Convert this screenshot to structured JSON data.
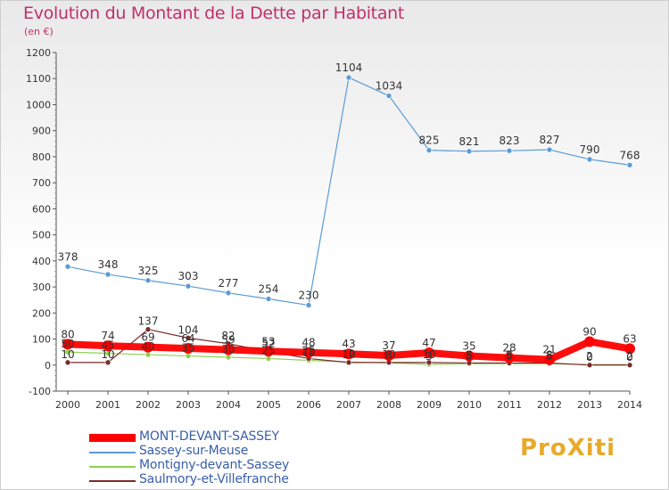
{
  "title": "Evolution du Montant de la Dette par Habitant",
  "unit_label": "(en €)",
  "logo_text": "ProXiti",
  "chart_data": {
    "type": "line",
    "x": [
      2000,
      2001,
      2002,
      2003,
      2004,
      2005,
      2006,
      2007,
      2008,
      2009,
      2010,
      2011,
      2012,
      2013,
      2014
    ],
    "ylim": [
      -100,
      1200
    ],
    "yticks": [
      -100,
      0,
      100,
      200,
      300,
      400,
      500,
      600,
      700,
      800,
      900,
      1000,
      1100,
      1200
    ],
    "grid": false,
    "legend_position": "bottom-left",
    "series": [
      {
        "name": "MONT-DEVANT-SASSEY",
        "color": "#ff0000",
        "values": [
          80,
          74,
          69,
          64,
          59,
          53,
          48,
          43,
          37,
          47,
          35,
          28,
          21,
          90,
          63
        ],
        "labels": [
          "80",
          "74",
          "69",
          "64",
          "59",
          "53",
          "48",
          "43",
          "37",
          "47",
          "35",
          "28",
          "21",
          "90",
          "63"
        ]
      },
      {
        "name": "Sassey-sur-Meuse",
        "color": "#5b9bd5",
        "values": [
          378,
          348,
          325,
          303,
          277,
          254,
          230,
          1104,
          1034,
          825,
          821,
          823,
          827,
          790,
          768
        ],
        "labels": [
          "378",
          "348",
          "325",
          "303",
          "277",
          "254",
          "230",
          "1104",
          "1034",
          "825",
          "821",
          "823",
          "827",
          "790",
          "768"
        ]
      },
      {
        "name": "Montigny-devant-Sassey",
        "color": "#8fd14f",
        "values": [
          50,
          45,
          40,
          35,
          30,
          25,
          18,
          12,
          8,
          3,
          5,
          5,
          5,
          2,
          2
        ],
        "labels": [
          "50",
          "45",
          "40",
          "35",
          "30",
          "25",
          "18",
          "12",
          "8",
          "3",
          "5",
          "5",
          "5",
          "2",
          "2"
        ]
      },
      {
        "name": "Saulmory-et-Villefranche",
        "color": "#7a2a2a",
        "values": [
          10,
          10,
          137,
          104,
          82,
          52,
          25,
          10,
          10,
          10,
          8,
          8,
          8,
          0,
          0
        ],
        "labels": [
          "10",
          "10",
          "137",
          "104",
          "82",
          "52",
          "25",
          "10",
          "10",
          "10",
          "8",
          "8",
          "8",
          "0",
          "0"
        ]
      }
    ]
  }
}
